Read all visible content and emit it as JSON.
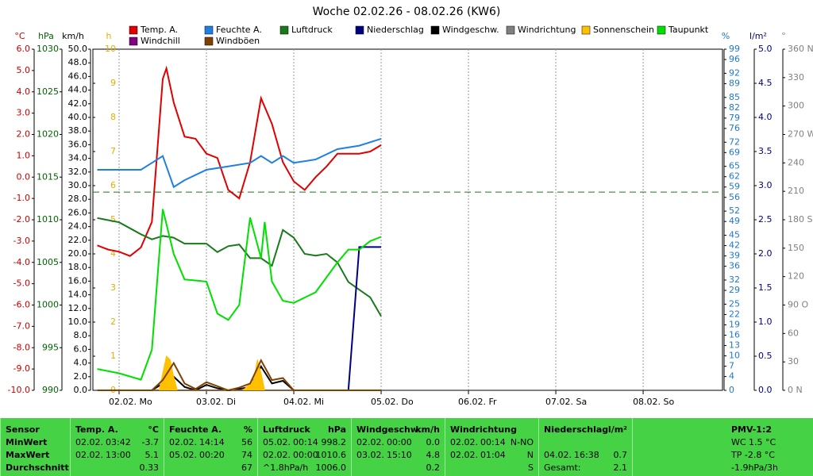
{
  "chart_data": {
    "type": "line",
    "title": "Woche 02.02.26 - 08.02.26 (KW6)",
    "xlim": [
      -7.2,
      165.8
    ],
    "xticks": [
      {
        "value": 0,
        "label": "02.02. Mo"
      },
      {
        "value": 24,
        "label": "03.02. Di"
      },
      {
        "value": 48,
        "label": "04.02. Mi"
      },
      {
        "value": 72,
        "label": "05.02. Do"
      },
      {
        "value": 96,
        "label": "06.02. Fr"
      },
      {
        "value": 120,
        "label": "07.02. Sa"
      },
      {
        "value": 144,
        "label": "08.02. So"
      }
    ],
    "axes": {
      "temp": {
        "label": "°C",
        "color": "#cc0000",
        "lim": [
          -10,
          6
        ],
        "ticks": [
          {
            "value": -10,
            "label": "-10.0"
          },
          {
            "value": -9,
            "label": "-9.0"
          },
          {
            "value": -8,
            "label": "-8.0"
          },
          {
            "value": -7,
            "label": "-7.0"
          },
          {
            "value": -6,
            "label": "-6.0"
          },
          {
            "value": -5,
            "label": "-5.0"
          },
          {
            "value": -4,
            "label": "-4.0"
          },
          {
            "value": -3,
            "label": "-3.0"
          },
          {
            "value": -2,
            "label": "-2.0"
          },
          {
            "value": -1,
            "label": "-1.0"
          },
          {
            "value": 0,
            "label": "0.0"
          },
          {
            "value": 1,
            "label": "1.0"
          },
          {
            "value": 2,
            "label": "2.0"
          },
          {
            "value": 3,
            "label": "3.0"
          },
          {
            "value": 4,
            "label": "4.0"
          },
          {
            "value": 5,
            "label": "5.0"
          },
          {
            "value": 6,
            "label": "6.0"
          }
        ]
      },
      "pres": {
        "label": "hPa",
        "color": "#006400",
        "lim": [
          990,
          1030
        ],
        "ticks": [
          990,
          995,
          1000,
          1005,
          1010,
          1015,
          1020,
          1025,
          1030
        ]
      },
      "wind": {
        "label": "km/h",
        "color": "#000000",
        "lim": [
          0,
          50
        ],
        "ticks": [
          {
            "value": 0,
            "label": "0.0"
          },
          {
            "value": 2,
            "label": "2.0"
          },
          {
            "value": 4,
            "label": "4.0"
          },
          {
            "value": 6,
            "label": "6.0"
          },
          {
            "value": 8,
            "label": "8.0"
          },
          {
            "value": 10,
            "label": "10.0"
          },
          {
            "value": 12,
            "label": "12.0"
          },
          {
            "value": 14,
            "label": "14.0"
          },
          {
            "value": 16,
            "label": "16.0"
          },
          {
            "value": 18,
            "label": "18.0"
          },
          {
            "value": 20,
            "label": "20.0"
          },
          {
            "value": 22,
            "label": "22.0"
          },
          {
            "value": 24,
            "label": "24.0"
          },
          {
            "value": 26,
            "label": "26.0"
          },
          {
            "value": 28,
            "label": "28.0"
          },
          {
            "value": 30,
            "label": "30.0"
          },
          {
            "value": 32,
            "label": "32.0"
          },
          {
            "value": 34,
            "label": "34.0"
          },
          {
            "value": 36,
            "label": "36.0"
          },
          {
            "value": 38,
            "label": "38.0"
          },
          {
            "value": 40,
            "label": "40.0"
          },
          {
            "value": 42,
            "label": "42.0"
          },
          {
            "value": 44,
            "label": "44.0"
          },
          {
            "value": 46,
            "label": "46.0"
          },
          {
            "value": 48,
            "label": "48.0"
          },
          {
            "value": 50,
            "label": "50.0"
          }
        ]
      },
      "sun": {
        "label": "h",
        "color": "#e0b000",
        "lim": [
          0,
          10
        ],
        "ticks": [
          0,
          1,
          2,
          3,
          4,
          5,
          6,
          7,
          8,
          9,
          10
        ]
      },
      "hum": {
        "label": "%",
        "color": "#1e78d0",
        "lim": [
          0,
          99
        ],
        "ticks": [
          0,
          4,
          7,
          10,
          13,
          16,
          19,
          22,
          25,
          29,
          32,
          36,
          39,
          42,
          45,
          49,
          52,
          56,
          59,
          62,
          65,
          69,
          72,
          76,
          79,
          82,
          85,
          89,
          92,
          96,
          99
        ]
      },
      "rain": {
        "label": "l/m²",
        "color": "#000080",
        "lim": [
          0,
          5
        ],
        "ticks": [
          {
            "value": 0,
            "label": "0.0"
          },
          {
            "value": 0.5,
            "label": "0.5"
          },
          {
            "value": 1,
            "label": "1.0"
          },
          {
            "value": 1.5,
            "label": "1.5"
          },
          {
            "value": 2,
            "label": "2.0"
          },
          {
            "value": 2.5,
            "label": "2.5"
          },
          {
            "value": 3,
            "label": "3.0"
          },
          {
            "value": 3.5,
            "label": "3.5"
          },
          {
            "value": 4,
            "label": "4.0"
          },
          {
            "value": 4.5,
            "label": "4.5"
          },
          {
            "value": 5,
            "label": "5.0"
          }
        ]
      },
      "dir": {
        "label": "°",
        "color": "#808080",
        "lim": [
          0,
          360
        ],
        "ticks": [
          {
            "value": 0,
            "label": "0 N"
          },
          30,
          60,
          {
            "value": 90,
            "label": "90 O"
          },
          120,
          150,
          {
            "value": 180,
            "label": "180 S"
          },
          210,
          240,
          {
            "value": 270,
            "label": "270 W"
          },
          300,
          330,
          {
            "value": 360,
            "label": "360 N"
          }
        ]
      }
    },
    "reference_line": {
      "axis": "pres",
      "value": 1013.25,
      "color": "#1a7a1a"
    },
    "series": [
      {
        "name": "Temp. A.",
        "color": "#e00000",
        "axis": "temp",
        "x": [
          -6,
          -3,
          0,
          3,
          6,
          9,
          12,
          13,
          15,
          18,
          21,
          24,
          27,
          30,
          33,
          36,
          39,
          42,
          45,
          48,
          51,
          54,
          57,
          60,
          63,
          66,
          69,
          72
        ],
        "values": [
          -3.2,
          -3.4,
          -3.5,
          -3.7,
          -3.3,
          -2.1,
          4.6,
          5.1,
          3.5,
          1.9,
          1.8,
          1.1,
          0.9,
          -0.6,
          -1.0,
          0.7,
          3.7,
          2.5,
          0.7,
          -0.2,
          -0.6,
          0,
          0.5,
          1.1,
          1.1,
          1.1,
          1.2,
          1.5
        ]
      },
      {
        "name": "Feuchte A.",
        "color": "#2080e0",
        "axis": "hum",
        "x": [
          -6,
          6,
          9,
          12,
          15,
          18,
          24,
          30,
          36,
          39,
          42,
          45,
          48,
          54,
          60,
          66,
          72
        ],
        "values": [
          64,
          64,
          66,
          68,
          59,
          61,
          64,
          65,
          66,
          68,
          66,
          68,
          66,
          67,
          70,
          71,
          73
        ]
      },
      {
        "name": "Luftdruck",
        "color": "#1a7a1a",
        "axis": "pres",
        "x": [
          -6,
          0,
          6,
          9,
          12,
          15,
          18,
          24,
          27,
          30,
          33,
          36,
          39,
          42,
          45,
          48,
          51,
          54,
          57,
          60,
          63,
          66,
          69,
          72
        ],
        "values": [
          1010.2,
          1009.7,
          1008.3,
          1007.7,
          1008.1,
          1007.9,
          1007.2,
          1007.2,
          1006.2,
          1006.9,
          1007.1,
          1005.5,
          1005.5,
          1004.6,
          1008.8,
          1007.9,
          1006,
          1005.8,
          1006,
          1005,
          1002.7,
          1001.8,
          1000.9,
          998.7
        ]
      },
      {
        "name": "Niederschlag",
        "color": "#000080",
        "axis": "rain",
        "x": [
          -6,
          63,
          64,
          66,
          72
        ],
        "values": [
          0,
          0,
          0.7,
          2.1,
          2.1
        ]
      },
      {
        "name": "Windgeschw.",
        "color": "#000000",
        "axis": "wind",
        "x": [
          -6,
          9,
          12,
          15,
          18,
          21,
          24,
          27,
          30,
          33,
          36,
          39,
          42,
          45,
          48,
          72
        ],
        "values": [
          0,
          0,
          1,
          2,
          0.5,
          0,
          0.8,
          0.3,
          0,
          0.2,
          0.5,
          3.5,
          1,
          1.4,
          0,
          0
        ]
      },
      {
        "name": "Windrichtung",
        "color": "#808080",
        "axis": "dir",
        "x": [],
        "values": []
      },
      {
        "name": "Sonnenschein",
        "color": "#ffc000",
        "axis": "sun",
        "style": "area",
        "x": [
          -6,
          11,
          12,
          13,
          14,
          15,
          16,
          34,
          37,
          38,
          39,
          40,
          72
        ],
        "values": [
          0,
          0,
          0.5,
          1,
          0.9,
          0.4,
          0,
          0,
          0.3,
          0.9,
          0.5,
          0,
          0
        ]
      },
      {
        "name": "Taupunkt",
        "color": "#00e000",
        "axis": "temp",
        "x": [
          -6,
          0,
          6,
          9,
          12,
          15,
          18,
          24,
          27,
          30,
          33,
          36,
          39,
          40,
          42,
          45,
          48,
          54,
          60,
          63,
          66,
          69,
          72
        ],
        "values": [
          -9,
          -9.2,
          -9.5,
          -8.1,
          -1.5,
          -3.6,
          -4.8,
          -4.9,
          -6.4,
          -6.7,
          -6,
          -1.9,
          -3.8,
          -2.1,
          -4.9,
          -5.8,
          -5.9,
          -5.4,
          -4,
          -3.4,
          -3.4,
          -3,
          -2.8
        ]
      },
      {
        "name": "Windchill",
        "color": "#800080",
        "axis": "temp",
        "x": [],
        "values": []
      },
      {
        "name": "Windböen",
        "color": "#804000",
        "axis": "wind",
        "x": [
          -6,
          9,
          12,
          15,
          18,
          21,
          24,
          27,
          30,
          33,
          36,
          39,
          42,
          45,
          48,
          72
        ],
        "values": [
          0,
          0,
          1.5,
          4,
          1,
          0.2,
          1.2,
          0.6,
          0,
          0.4,
          1,
          4.4,
          1.5,
          1.8,
          0,
          0
        ]
      }
    ]
  },
  "table": {
    "columns": [
      {
        "title": "Sensor",
        "rows": [
          [
            "MinWert"
          ],
          [
            "MaxWert"
          ],
          [
            "Durchschnitt"
          ]
        ]
      },
      {
        "title": "Temp. A.",
        "unit": "°C",
        "rows": [
          [
            "02.02.",
            "03:42",
            "-3.7"
          ],
          [
            "02.02.",
            "13:00",
            "5.1"
          ],
          [
            "0.33"
          ]
        ]
      },
      {
        "title": "Feuchte A.",
        "unit": "%",
        "rows": [
          [
            "02.02.",
            "14:14",
            "56"
          ],
          [
            "05.02.",
            "00:20",
            "74"
          ],
          [
            "67"
          ]
        ]
      },
      {
        "title": "Luftdruck",
        "unit": "hPa",
        "rows": [
          [
            "05.02.",
            "00:14",
            "998.2"
          ],
          [
            "02.02.",
            "00:00",
            "1010.6"
          ],
          [
            "^1.8hPa/h",
            "1006.0"
          ]
        ]
      },
      {
        "title": "Windgeschw.",
        "unit": "km/h",
        "rows": [
          [
            "02.02.",
            "00:00",
            "0.0"
          ],
          [
            "03.02.",
            "15:10",
            "4.8"
          ],
          [
            "0.2"
          ]
        ]
      },
      {
        "title": "Windrichtung",
        "rows": [
          [
            "02.02.",
            "00:14",
            "N-NO"
          ],
          [
            "02.02.",
            "01:04",
            "N"
          ],
          [
            "S"
          ]
        ]
      },
      {
        "title": "Niederschlag",
        "unit": "l/m²",
        "rows": [
          [],
          [
            "04.02.",
            "16:38",
            "0.7"
          ],
          [
            "Gesamt:",
            "2.1"
          ]
        ]
      },
      {
        "title": "PMV-1:2",
        "lines": [
          "WC 1.5 °C",
          "TP -2.8 °C",
          "-1.9hPa/3h"
        ]
      }
    ]
  }
}
